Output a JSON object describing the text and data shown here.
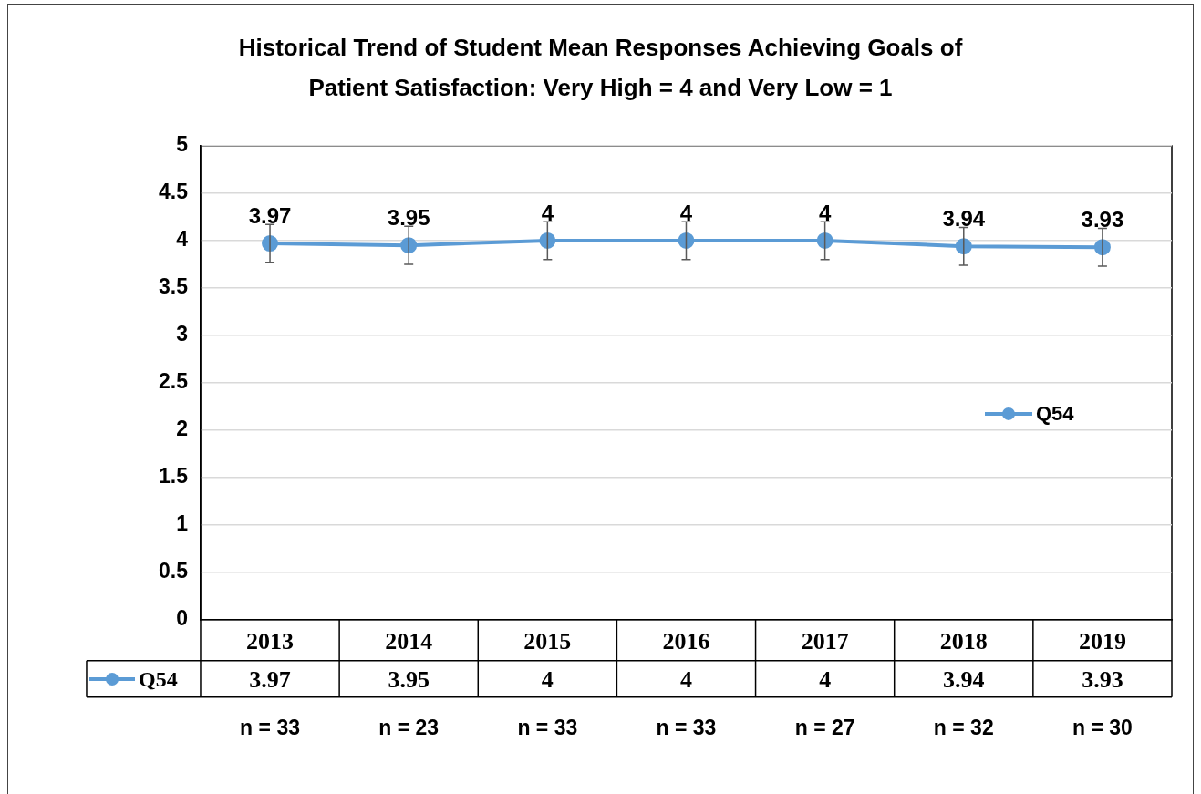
{
  "chart_data": {
    "type": "line",
    "title": "Historical Trend of Student Mean Responses Achieving Goals of\nPatient Satisfaction: Very High = 4 and Very Low = 1",
    "categories": [
      "2013",
      "2014",
      "2015",
      "2016",
      "2017",
      "2018",
      "2019"
    ],
    "series": [
      {
        "name": "Q54",
        "color": "#5b9bd5",
        "values": [
          3.97,
          3.95,
          4,
          4,
          4,
          3.94,
          3.93
        ],
        "errors": [
          0.2,
          0.2,
          0.2,
          0.2,
          0.2,
          0.2,
          0.2
        ],
        "value_labels": [
          "3.97",
          "3.95",
          "4",
          "4",
          "4",
          "3.94",
          "3.93"
        ]
      }
    ],
    "ylim": [
      0,
      5
    ],
    "yticks": [
      0,
      0.5,
      1,
      1.5,
      2,
      2.5,
      3,
      3.5,
      4,
      4.5,
      5
    ],
    "grid": "y",
    "legend": "right",
    "marker": "circle",
    "line_style": "solid",
    "annotations": [
      "3.97",
      "3.95",
      "4",
      "4",
      "4",
      "3.94",
      "3.93",
      "n = 33",
      "n = 23",
      "n = 33",
      "n = 33",
      "n = 27",
      "n = 32",
      "n = 30"
    ]
  }
}
